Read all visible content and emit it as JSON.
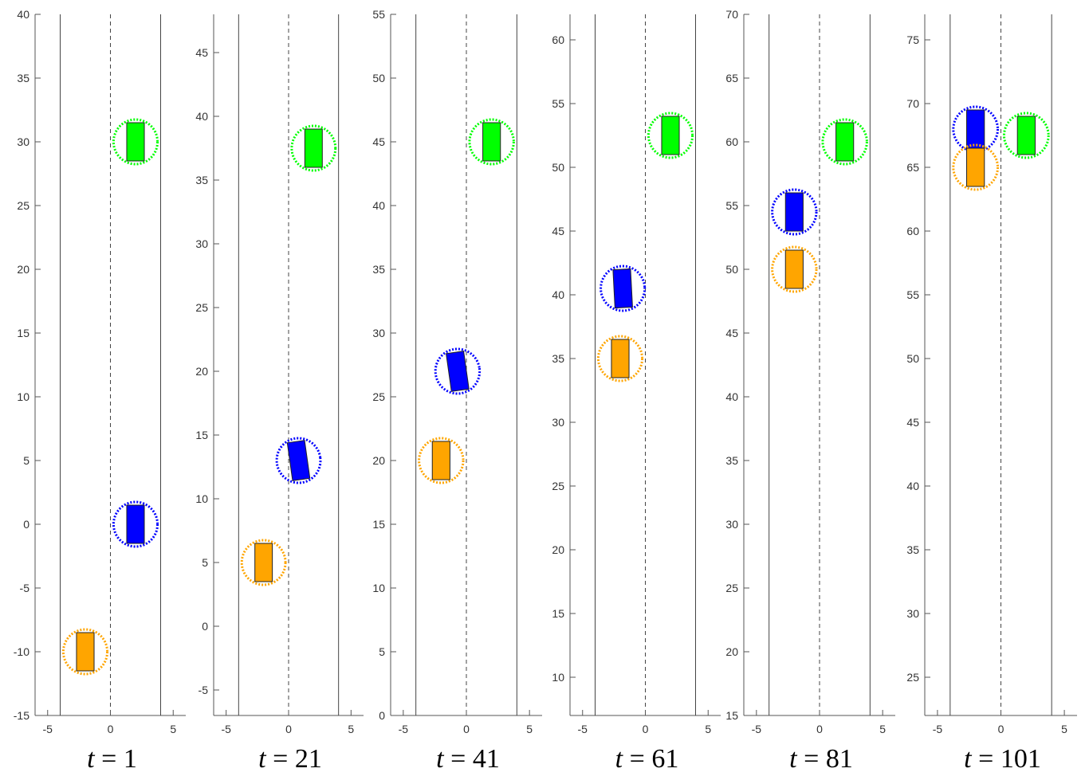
{
  "chart_data": [
    {
      "type": "scatter",
      "caption_var": "t",
      "caption_eq": " = ",
      "caption_value": "1",
      "xlim": [
        -6,
        6
      ],
      "ylim": [
        -15,
        40
      ],
      "xticks": [
        -5,
        0,
        5
      ],
      "yticks": [
        -15,
        -10,
        -5,
        0,
        5,
        10,
        15,
        20,
        25,
        30,
        35,
        40
      ],
      "lane_lines": [
        -4,
        4
      ],
      "center_line": 0,
      "vehicles": [
        {
          "color": "#00ff00",
          "x": 2,
          "y": 30,
          "angle": 0
        },
        {
          "color": "#0000ff",
          "x": 2,
          "y": 0,
          "angle": 0
        },
        {
          "color": "#ffa500",
          "x": -2,
          "y": -10,
          "angle": 0
        }
      ]
    },
    {
      "type": "scatter",
      "caption_var": "t",
      "caption_eq": " = ",
      "caption_value": "21",
      "xlim": [
        -6,
        6
      ],
      "ylim": [
        -7,
        48
      ],
      "xticks": [
        -5,
        0,
        5
      ],
      "yticks": [
        -5,
        0,
        5,
        10,
        15,
        20,
        25,
        30,
        35,
        40,
        45
      ],
      "lane_lines": [
        -4,
        4
      ],
      "center_line": 0,
      "vehicles": [
        {
          "color": "#00ff00",
          "x": 2,
          "y": 37.5,
          "angle": 0
        },
        {
          "color": "#0000ff",
          "x": 0.8,
          "y": 13,
          "angle": -8
        },
        {
          "color": "#ffa500",
          "x": -2,
          "y": 5,
          "angle": 0
        }
      ]
    },
    {
      "type": "scatter",
      "caption_var": "t",
      "caption_eq": " = ",
      "caption_value": "41",
      "xlim": [
        -6,
        6
      ],
      "ylim": [
        0,
        55
      ],
      "xticks": [
        -5,
        0,
        5
      ],
      "yticks": [
        0,
        5,
        10,
        15,
        20,
        25,
        30,
        35,
        40,
        45,
        50,
        55
      ],
      "lane_lines": [
        -4,
        4
      ],
      "center_line": 0,
      "vehicles": [
        {
          "color": "#00ff00",
          "x": 2,
          "y": 45,
          "angle": 0
        },
        {
          "color": "#0000ff",
          "x": -0.7,
          "y": 27,
          "angle": -8
        },
        {
          "color": "#ffa500",
          "x": -2,
          "y": 20,
          "angle": 0
        }
      ]
    },
    {
      "type": "scatter",
      "caption_var": "t",
      "caption_eq": " = ",
      "caption_value": "61",
      "xlim": [
        -6,
        6
      ],
      "ylim": [
        7,
        62
      ],
      "xticks": [
        -5,
        0,
        5
      ],
      "yticks": [
        10,
        15,
        20,
        25,
        30,
        35,
        40,
        45,
        50,
        55,
        60
      ],
      "lane_lines": [
        -4,
        4
      ],
      "center_line": 0,
      "vehicles": [
        {
          "color": "#00ff00",
          "x": 2,
          "y": 52.5,
          "angle": 0
        },
        {
          "color": "#0000ff",
          "x": -1.8,
          "y": 40.5,
          "angle": -3
        },
        {
          "color": "#ffa500",
          "x": -2,
          "y": 35,
          "angle": 0
        }
      ]
    },
    {
      "type": "scatter",
      "caption_var": "t",
      "caption_eq": " = ",
      "caption_value": "81",
      "xlim": [
        -6,
        6
      ],
      "ylim": [
        15,
        70
      ],
      "xticks": [
        -5,
        0,
        5
      ],
      "yticks": [
        15,
        20,
        25,
        30,
        35,
        40,
        45,
        50,
        55,
        60,
        65,
        70
      ],
      "lane_lines": [
        -4,
        4
      ],
      "center_line": 0,
      "vehicles": [
        {
          "color": "#00ff00",
          "x": 2,
          "y": 60,
          "angle": 0
        },
        {
          "color": "#0000ff",
          "x": -2,
          "y": 54.5,
          "angle": 0
        },
        {
          "color": "#ffa500",
          "x": -2,
          "y": 50,
          "angle": 0
        }
      ]
    },
    {
      "type": "scatter",
      "caption_var": "t",
      "caption_eq": " = ",
      "caption_value": "101",
      "xlim": [
        -6,
        6
      ],
      "ylim": [
        22,
        77
      ],
      "xticks": [
        -5,
        0,
        5
      ],
      "yticks": [
        25,
        30,
        35,
        40,
        45,
        50,
        55,
        60,
        65,
        70,
        75
      ],
      "lane_lines": [
        -4,
        4
      ],
      "center_line": 0,
      "vehicles": [
        {
          "color": "#00ff00",
          "x": 2,
          "y": 67.5,
          "angle": 0
        },
        {
          "color": "#0000ff",
          "x": -2,
          "y": 68,
          "angle": 0
        },
        {
          "color": "#ffa500",
          "x": -2,
          "y": 65,
          "angle": 0
        }
      ]
    }
  ]
}
